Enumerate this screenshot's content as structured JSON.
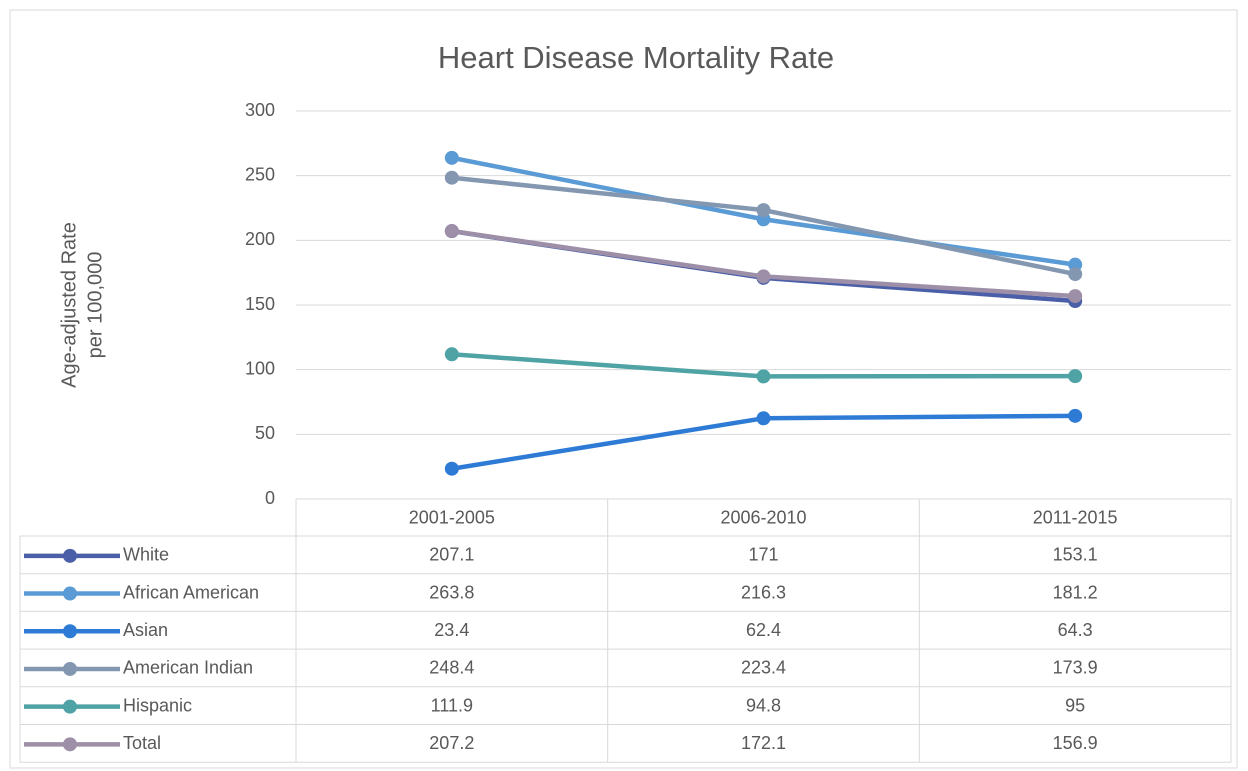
{
  "chart_data": {
    "type": "line",
    "title": "Heart Disease Mortality Rate",
    "y_label": [
      "Age-adjusted Rate",
      "per 100,000"
    ],
    "categories": [
      "2001-2005",
      "2006-2010",
      "2011-2015"
    ],
    "ylim": [
      0,
      300
    ],
    "yticks": [
      0,
      50,
      100,
      150,
      200,
      250,
      300
    ],
    "grid": true,
    "data_table": true,
    "series": [
      {
        "name": "White",
        "color": "#4a5fa8",
        "values": [
          207.1,
          171,
          153.1
        ]
      },
      {
        "name": "African American",
        "color": "#5b9bd5",
        "values": [
          263.8,
          216.3,
          181.2
        ]
      },
      {
        "name": "Asian",
        "color": "#2e7bd6",
        "values": [
          23.4,
          62.4,
          64.3
        ]
      },
      {
        "name": "American Indian",
        "color": "#8497b0",
        "values": [
          248.4,
          223.4,
          173.9
        ]
      },
      {
        "name": "Hispanic",
        "color": "#4fa3a5",
        "values": [
          111.9,
          94.8,
          95
        ]
      },
      {
        "name": "Total",
        "color": "#9e8fa8",
        "values": [
          207.2,
          172.1,
          156.9
        ]
      }
    ]
  }
}
